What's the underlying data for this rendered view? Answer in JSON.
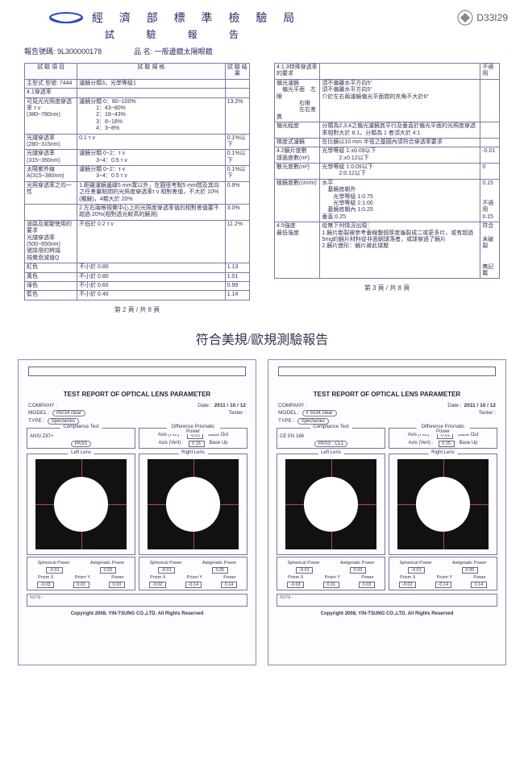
{
  "header": {
    "org": "經 濟 部 標 準 檢 驗 局",
    "sub": "試 驗 報 告",
    "stamp_code": "D33I29",
    "report_no_label": "報告號碼:",
    "report_no": "9L300000178",
    "product_label": "品   名:",
    "product_name": "一般邊鏡太陽眼鏡"
  },
  "left_table": {
    "head": [
      "試 驗 項 目",
      "試 驗 規 格",
      "試 驗 結 果"
    ],
    "rows": [
      [
        "主型式 型號: 7444",
        "濾鏡分類3，光學等級1",
        ""
      ],
      [
        "4.1穿透率",
        "",
        ""
      ],
      [
        "可見光光照度穿透率 τ v\n(380~780nm)",
        "濾鏡分類 0：80~100%\n　　　1：43~80%\n　　　2：18~43%\n　　　3：8~18%\n　　　4：3~8%",
        "13.2%"
      ],
      [
        "光譜穿透率(280~315nm)",
        "0.1 τ v",
        "0.1%以下"
      ],
      [
        "光譜穿透率(315~350nm)",
        "濾鏡分類 0~2：τ v\n　　　3~4：0.5 τ v",
        "0.1%以下"
      ],
      [
        "太陽紫外線A(315~380nm)",
        "濾鏡分類 0~2：τ v\n　　　3~4：0.5 τ v",
        "0.1%以下"
      ],
      [
        "光照穿透率之均一性",
        "1.距離濾鏡邊緣5 mm寬以外，在圓徑考點5 mm間及其向之任差量點間的光照度穿透率τ v 相對差值，不大於 10%(獨鏡)，4類大於 20%",
        "0.9%"
      ],
      [
        "",
        "2.左右兩眼視覺中心上的光照度穿透率值的相對差值要不超過 20%(相對透光較高的鏡測)",
        "3.0%"
      ],
      [
        "道路及駕駛使用的要求\n光譜穿透率(500~650nm)\n號誌燈的辨識\n視覺衰減值Q",
        "不低於 0.2 τ v",
        "11.2%"
      ],
      [
        "紅色",
        "不小於 0.80",
        "1.13"
      ],
      [
        "黃色",
        "不小於 0.80",
        "1.01"
      ],
      [
        "綠色",
        "不小於 0.60",
        "0.99"
      ],
      [
        "藍色",
        "不小於 0.40",
        "1.14"
      ]
    ],
    "pager": "第 2 頁 / 共 8 頁"
  },
  "right_table": {
    "rows": [
      [
        "4.1.3特殊穿透率的要求",
        "",
        "不適用"
      ],
      [
        "偏光濾鏡\n　偏光平面　左眼\n　　　　右眼\n　　　　左右差異",
        "須不偏離水平方向5°\n須不偏離水平方向5°\n介於左右兩濾鏡偏光平面間的夾角不大於6°",
        ""
      ],
      [
        "偏光程度",
        "分類為2,3,4之偏光濾鏡其平行及垂直於偏光平面的光照度穿透率相對大於 8:1，分類為 1 者須大於 4:1",
        ""
      ],
      [
        "梯度式濾鏡",
        "在比鏡以10 mm 半徑之基圓內須符合穿透率要求",
        ""
      ],
      [
        "4.2鏡片度數\n球面度數(m²)",
        "光學等級 1:±0.09以下\n　　　2:±0.12以下",
        "-0.01"
      ],
      [
        "散光度數(m²)",
        "光學等級 1:0.09以下\n　　　2:0.12以下",
        "0"
      ],
      [
        "稜鏡度數(cm/m)",
        "水平\n　基鏡底朝外\n　　光學等級 1:0.75\n　　光學等級 2:1.00\n　基鏡底朝內 1:0.25\n垂直:0.25",
        "0.15\n\n\n不適用\n0.15"
      ],
      [
        "4.5強度\n最低強度",
        "從無下列情況出現：\n1.鏡片斷裂被參考垂線整個厚度龜裂成二或更多片，或有超過5mg的鏡片材料從非面朝球落者，或球穿過了鏡片\n2.鏡片變形：鏡片被此球壓",
        "符合\n\n未破裂\n\n\n無記載"
      ]
    ],
    "pager": "第 3 頁 / 共 8 頁"
  },
  "divider": "符合美規/歐規測驗報告",
  "reports": [
    {
      "title": "TEST REPORT OF OPTICAL LENS PARAMETER",
      "company_lbl": "COMPANY :",
      "date_lbl": "Date :",
      "date": "2011 / 10 / 12",
      "model_lbl": "MODEL :",
      "model": "#5034 clear",
      "tester_lbl": "Tester :",
      "type_lbl": "TYPE :",
      "type": "Spectacles",
      "compliance_title": "Compliance Test",
      "compliance_items": [
        "ANSI Z87+",
        "PASS"
      ],
      "diff_title": "Difference Prismatic Power",
      "axis_hor_lbl": "Axis (Hor)  :",
      "axis_hor": "-0.01",
      "base_hor": "Base Out",
      "axis_vert_lbl": "Axis (Vert) :",
      "axis_vert": "0.15",
      "base_vert": "Base Up",
      "left_lens": "Left Lens",
      "right_lens": "Right Lens",
      "sph_lbl": "Spherical Power",
      "ast_lbl": "Astigmatic Power",
      "left": {
        "sph": "-0.01",
        "ast": "0.03",
        "px": "-0.03",
        "py": "0.01",
        "pwr": "0.03",
        "pal": "Prism X",
        "pbl": "Prism Y",
        "pcl": "Power"
      },
      "right": {
        "sph": "-0.01",
        "ast": "0.05",
        "px": "-0.02",
        "py": "-0.14",
        "pwr": "0.14",
        "pal": "Prism X",
        "pbl": "Prism Y",
        "pcl": "Power"
      },
      "note": "NOTE :",
      "copyright": "Copyright 2008, YIN-TSUNG CO.,LTD. All Rights Reserved"
    },
    {
      "title": "TEST REPORT OF OPTICAL LENS PARAMETER",
      "company_lbl": "COMPANY :",
      "date_lbl": "Date :",
      "date": "2011 / 10 / 12",
      "model_lbl": "MODEL :",
      "model": "# 5034 clear",
      "tester_lbl": "Tester :",
      "type_lbl": "TYPE :",
      "type": "Spectacles",
      "compliance_title": "Compliance Test",
      "compliance_items": [
        "CE EN 166",
        "PASS : CL1"
      ],
      "diff_title": "Difference Prismatic Power",
      "axis_hor_lbl": "Axis (Hor)  :",
      "axis_hor": "-0.01",
      "base_hor": "Base Out",
      "axis_vert_lbl": "Axis (Vert) :",
      "axis_vert": "0.15",
      "base_vert": "Base Up",
      "left_lens": "Left Lens",
      "right_lens": "Right Lens",
      "sph_lbl": "Spherical Power",
      "ast_lbl": "Astigmatic Power",
      "left": {
        "sph": "-0.01",
        "ast": "0.03",
        "px": "-0.03",
        "py": "0.01",
        "pwr": "0.03",
        "pal": "Prism X",
        "pbl": "Prism Y",
        "pcl": "Power"
      },
      "right": {
        "sph": "-0.01",
        "ast": "0.05",
        "px": "-0.02",
        "py": "-0.14",
        "pwr": "0.14",
        "pal": "Prism X",
        "pbl": "Prism Y",
        "pcl": "Power"
      },
      "note": "NOTE :",
      "copyright": "Copyright 2008, YIN-TSUNG CO.,LTD. All Rights Reserved"
    }
  ]
}
